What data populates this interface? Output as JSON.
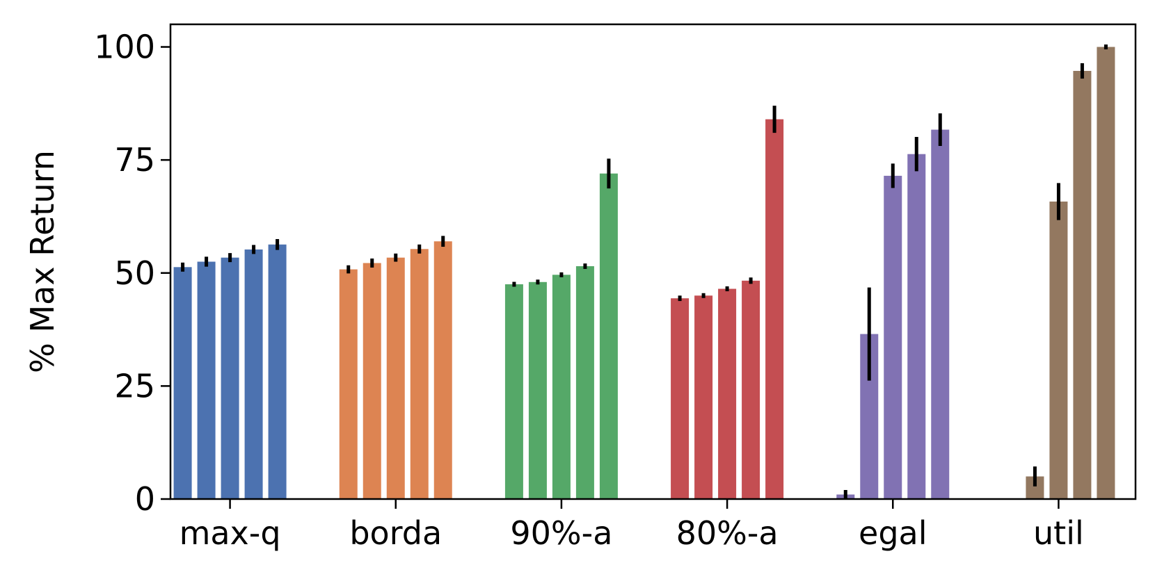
{
  "chart_data": {
    "type": "bar",
    "title": "",
    "xlabel": "",
    "ylabel": "% Max Return",
    "ylim": [
      0,
      105
    ],
    "yticks": [
      0,
      25,
      50,
      75,
      100
    ],
    "grid": false,
    "legend": "none",
    "categories": [
      "max-q",
      "borda",
      "90%-a",
      "80%-a",
      "egal",
      "util"
    ],
    "group_colors": [
      "#4c72b0",
      "#dd8452",
      "#55a868",
      "#c44e52",
      "#8172b3",
      "#937860"
    ],
    "error_bar_color": "#000000",
    "groups": [
      {
        "category": "max-q",
        "values": [
          51.3,
          52.5,
          53.4,
          55.2,
          56.3
        ],
        "errors": [
          1.0,
          1.1,
          1.0,
          1.0,
          1.2
        ]
      },
      {
        "category": "borda",
        "values": [
          50.8,
          52.2,
          53.4,
          55.3,
          57.0
        ],
        "errors": [
          0.9,
          1.0,
          0.9,
          1.0,
          1.2
        ]
      },
      {
        "category": "90%-a",
        "values": [
          47.5,
          48.0,
          49.6,
          51.5,
          72.0
        ],
        "errors": [
          0.5,
          0.4,
          0.4,
          0.6,
          3.3
        ]
      },
      {
        "category": "80%-a",
        "values": [
          44.4,
          45.0,
          46.5,
          48.3,
          84.0
        ],
        "errors": [
          0.6,
          0.4,
          0.4,
          0.7,
          3.0
        ]
      },
      {
        "category": "egal",
        "values": [
          1.0,
          36.5,
          71.5,
          76.3,
          81.7
        ],
        "errors": [
          1.0,
          10.3,
          2.7,
          3.8,
          3.6
        ]
      },
      {
        "category": "util",
        "values": [
          0,
          5.0,
          65.8,
          94.7,
          100.0
        ],
        "errors": [
          0,
          2.2,
          4.1,
          1.7,
          0.0
        ]
      }
    ]
  }
}
